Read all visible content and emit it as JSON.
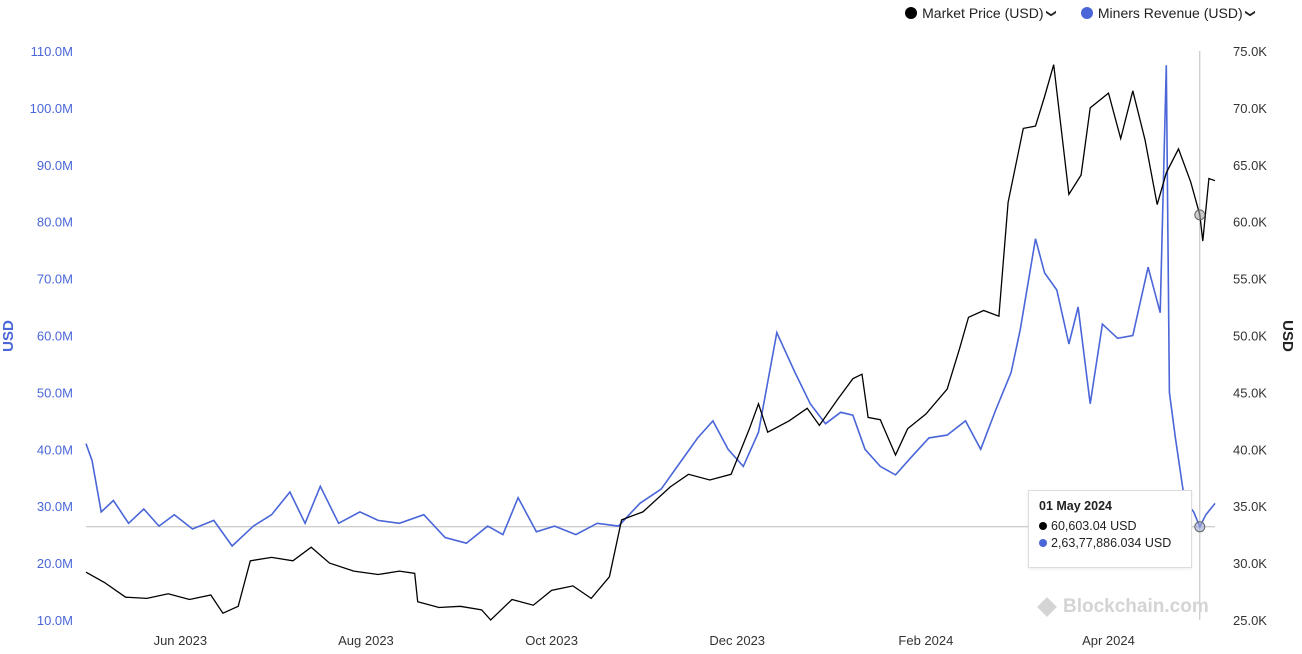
{
  "legend": {
    "series1_label": "Market Price (USD)",
    "series2_label": "Miners Revenue (USD)",
    "chevron": "❯"
  },
  "colors": {
    "price": "#000000",
    "revenue": "#4a66d8",
    "axis_left": "#4a66d8",
    "axis_right": "#333333"
  },
  "tooltip": {
    "date": "01 May 2024",
    "price": "60,603.04 USD",
    "revenue": "2,63,77,886.034 USD"
  },
  "watermark": "Blockchain.com",
  "chart_data": {
    "type": "line",
    "dual_axis": true,
    "left_axis": {
      "label": "USD",
      "range": [
        10000000,
        110000000
      ],
      "ticks": [
        "10.0M",
        "20.0M",
        "30.0M",
        "40.0M",
        "50.0M",
        "60.0M",
        "70.0M",
        "80.0M",
        "90.0M",
        "100.0M",
        "110.0M"
      ]
    },
    "right_axis": {
      "label": "USD",
      "range": [
        25000,
        75000
      ],
      "ticks": [
        "25.0K",
        "30.0K",
        "35.0K",
        "40.0K",
        "45.0K",
        "50.0K",
        "55.0K",
        "60.0K",
        "65.0K",
        "70.0K",
        "75.0K"
      ]
    },
    "x_axis": {
      "range": [
        "2023-05-01",
        "2024-05-06"
      ],
      "ticks": [
        {
          "label": "Jun 2023",
          "date": "2023-06-01"
        },
        {
          "label": "Aug 2023",
          "date": "2023-08-01"
        },
        {
          "label": "Oct 2023",
          "date": "2023-10-01"
        },
        {
          "label": "Dec 2023",
          "date": "2023-12-01"
        },
        {
          "label": "Feb 2024",
          "date": "2024-02-01"
        },
        {
          "label": "Apr 2024",
          "date": "2024-04-01"
        }
      ]
    },
    "series": [
      {
        "name": "Market Price (USD)",
        "axis": "right",
        "points": [
          [
            "2023-05-01",
            29200
          ],
          [
            "2023-05-07",
            28300
          ],
          [
            "2023-05-14",
            27000
          ],
          [
            "2023-05-21",
            26900
          ],
          [
            "2023-05-28",
            27300
          ],
          [
            "2023-06-04",
            26800
          ],
          [
            "2023-06-11",
            27200
          ],
          [
            "2023-06-15",
            25600
          ],
          [
            "2023-06-20",
            26200
          ],
          [
            "2023-06-24",
            30200
          ],
          [
            "2023-07-01",
            30500
          ],
          [
            "2023-07-08",
            30200
          ],
          [
            "2023-07-14",
            31400
          ],
          [
            "2023-07-20",
            30000
          ],
          [
            "2023-07-28",
            29300
          ],
          [
            "2023-08-05",
            29000
          ],
          [
            "2023-08-12",
            29300
          ],
          [
            "2023-08-17",
            29100
          ],
          [
            "2023-08-18",
            26600
          ],
          [
            "2023-08-25",
            26100
          ],
          [
            "2023-09-01",
            26200
          ],
          [
            "2023-09-08",
            25900
          ],
          [
            "2023-09-11",
            25000
          ],
          [
            "2023-09-18",
            26800
          ],
          [
            "2023-09-25",
            26300
          ],
          [
            "2023-10-01",
            27600
          ],
          [
            "2023-10-08",
            28000
          ],
          [
            "2023-10-14",
            26900
          ],
          [
            "2023-10-20",
            28800
          ],
          [
            "2023-10-24",
            33800
          ],
          [
            "2023-10-31",
            34500
          ],
          [
            "2023-11-09",
            36700
          ],
          [
            "2023-11-15",
            37800
          ],
          [
            "2023-11-22",
            37300
          ],
          [
            "2023-11-29",
            37800
          ],
          [
            "2023-12-05",
            41800
          ],
          [
            "2023-12-08",
            44000
          ],
          [
            "2023-12-11",
            41500
          ],
          [
            "2023-12-18",
            42500
          ],
          [
            "2023-12-24",
            43600
          ],
          [
            "2023-12-28",
            42100
          ],
          [
            "2024-01-03",
            44400
          ],
          [
            "2024-01-08",
            46200
          ],
          [
            "2024-01-11",
            46600
          ],
          [
            "2024-01-13",
            42800
          ],
          [
            "2024-01-17",
            42600
          ],
          [
            "2024-01-22",
            39500
          ],
          [
            "2024-01-26",
            41800
          ],
          [
            "2024-02-01",
            43100
          ],
          [
            "2024-02-08",
            45300
          ],
          [
            "2024-02-12",
            48800
          ],
          [
            "2024-02-15",
            51600
          ],
          [
            "2024-02-20",
            52200
          ],
          [
            "2024-02-25",
            51700
          ],
          [
            "2024-02-28",
            61700
          ],
          [
            "2024-03-04",
            68200
          ],
          [
            "2024-03-08",
            68400
          ],
          [
            "2024-03-11",
            71000
          ],
          [
            "2024-03-14",
            73800
          ],
          [
            "2024-03-19",
            62400
          ],
          [
            "2024-03-23",
            64100
          ],
          [
            "2024-03-26",
            70000
          ],
          [
            "2024-04-01",
            71300
          ],
          [
            "2024-04-05",
            67300
          ],
          [
            "2024-04-09",
            71500
          ],
          [
            "2024-04-13",
            67200
          ],
          [
            "2024-04-17",
            61500
          ],
          [
            "2024-04-20",
            64300
          ],
          [
            "2024-04-24",
            66400
          ],
          [
            "2024-04-28",
            63500
          ],
          [
            "2024-05-01",
            60603
          ],
          [
            "2024-05-02",
            58300
          ],
          [
            "2024-05-04",
            63800
          ],
          [
            "2024-05-06",
            63600
          ]
        ]
      },
      {
        "name": "Miners Revenue (USD)",
        "axis": "left",
        "points": [
          [
            "2023-05-01",
            41000000
          ],
          [
            "2023-05-03",
            38000000
          ],
          [
            "2023-05-06",
            29000000
          ],
          [
            "2023-05-10",
            31000000
          ],
          [
            "2023-05-15",
            27000000
          ],
          [
            "2023-05-20",
            29500000
          ],
          [
            "2023-05-25",
            26500000
          ],
          [
            "2023-05-30",
            28500000
          ],
          [
            "2023-06-05",
            26000000
          ],
          [
            "2023-06-12",
            27500000
          ],
          [
            "2023-06-18",
            23000000
          ],
          [
            "2023-06-25",
            26500000
          ],
          [
            "2023-07-01",
            28500000
          ],
          [
            "2023-07-07",
            32500000
          ],
          [
            "2023-07-12",
            27000000
          ],
          [
            "2023-07-17",
            33500000
          ],
          [
            "2023-07-23",
            27000000
          ],
          [
            "2023-07-30",
            29000000
          ],
          [
            "2023-08-05",
            27500000
          ],
          [
            "2023-08-12",
            27000000
          ],
          [
            "2023-08-20",
            28500000
          ],
          [
            "2023-08-27",
            24500000
          ],
          [
            "2023-09-03",
            23500000
          ],
          [
            "2023-09-10",
            26500000
          ],
          [
            "2023-09-15",
            25000000
          ],
          [
            "2023-09-20",
            31500000
          ],
          [
            "2023-09-26",
            25500000
          ],
          [
            "2023-10-02",
            26500000
          ],
          [
            "2023-10-09",
            25000000
          ],
          [
            "2023-10-16",
            27000000
          ],
          [
            "2023-10-23",
            26500000
          ],
          [
            "2023-10-30",
            30500000
          ],
          [
            "2023-11-06",
            33000000
          ],
          [
            "2023-11-12",
            37500000
          ],
          [
            "2023-11-18",
            42000000
          ],
          [
            "2023-11-23",
            45000000
          ],
          [
            "2023-11-28",
            40000000
          ],
          [
            "2023-12-03",
            37000000
          ],
          [
            "2023-12-08",
            43000000
          ],
          [
            "2023-12-14",
            60500000
          ],
          [
            "2023-12-17",
            57000000
          ],
          [
            "2023-12-20",
            53500000
          ],
          [
            "2023-12-25",
            48000000
          ],
          [
            "2023-12-30",
            44500000
          ],
          [
            "2024-01-04",
            46500000
          ],
          [
            "2024-01-08",
            46000000
          ],
          [
            "2024-01-12",
            40000000
          ],
          [
            "2024-01-17",
            37000000
          ],
          [
            "2024-01-22",
            35500000
          ],
          [
            "2024-01-27",
            38500000
          ],
          [
            "2024-02-02",
            42000000
          ],
          [
            "2024-02-08",
            42500000
          ],
          [
            "2024-02-14",
            45000000
          ],
          [
            "2024-02-19",
            40000000
          ],
          [
            "2024-02-24",
            47000000
          ],
          [
            "2024-02-29",
            53500000
          ],
          [
            "2024-03-03",
            61000000
          ],
          [
            "2024-03-08",
            77000000
          ],
          [
            "2024-03-11",
            71000000
          ],
          [
            "2024-03-15",
            68000000
          ],
          [
            "2024-03-19",
            58500000
          ],
          [
            "2024-03-22",
            65000000
          ],
          [
            "2024-03-26",
            48000000
          ],
          [
            "2024-03-30",
            62000000
          ],
          [
            "2024-04-04",
            59500000
          ],
          [
            "2024-04-09",
            60000000
          ],
          [
            "2024-04-14",
            72000000
          ],
          [
            "2024-04-18",
            64000000
          ],
          [
            "2024-04-20",
            107500000
          ],
          [
            "2024-04-21",
            50000000
          ],
          [
            "2024-04-23",
            42000000
          ],
          [
            "2024-04-26",
            31000000
          ],
          [
            "2024-04-29",
            29000000
          ],
          [
            "2024-05-01",
            26377886
          ],
          [
            "2024-05-03",
            28500000
          ],
          [
            "2024-05-06",
            30500000
          ]
        ]
      }
    ],
    "crosshair": {
      "date": "2024-05-01",
      "price": 60603.04,
      "revenue": 26377886.034
    }
  }
}
